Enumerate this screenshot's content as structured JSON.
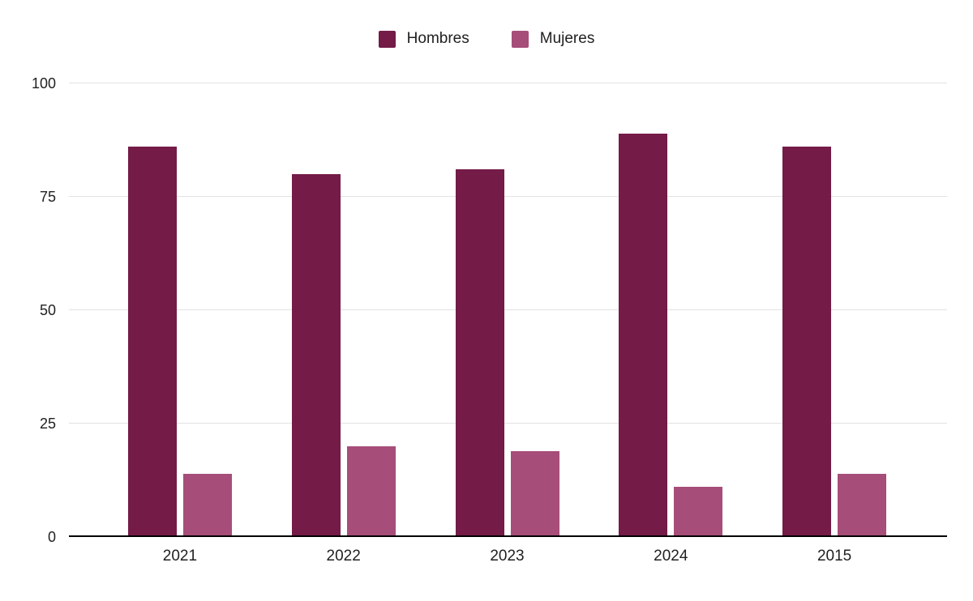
{
  "chart_data": {
    "type": "bar",
    "title": "",
    "xlabel": "",
    "ylabel": "",
    "categories": [
      "2021",
      "2022",
      "2023",
      "2024",
      "2015"
    ],
    "series": [
      {
        "name": "Hombres",
        "color": "#741b47",
        "values": [
          86,
          80,
          81,
          89,
          86
        ]
      },
      {
        "name": "Mujeres",
        "color": "#a64d79",
        "values": [
          14,
          20,
          19,
          11,
          14
        ]
      }
    ],
    "ylim": [
      0,
      100
    ],
    "yticks": [
      0,
      25,
      50,
      75,
      100
    ],
    "grid": true,
    "legend_position": "top"
  },
  "colors": {
    "background": "#ffffff",
    "gridline": "#e2e2e2",
    "axis_line": "#000000",
    "text": "#212121"
  }
}
